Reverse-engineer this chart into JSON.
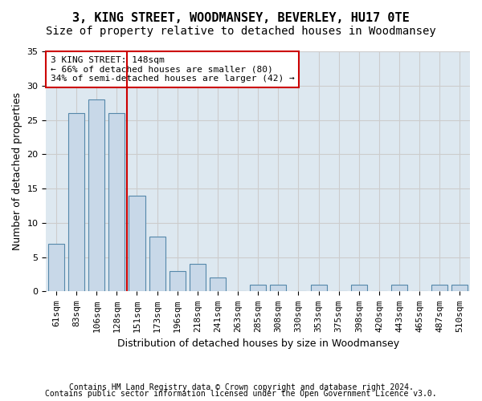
{
  "title": "3, KING STREET, WOODMANSEY, BEVERLEY, HU17 0TE",
  "subtitle": "Size of property relative to detached houses in Woodmansey",
  "xlabel": "Distribution of detached houses by size in Woodmansey",
  "ylabel": "Number of detached properties",
  "categories": [
    "61sqm",
    "83sqm",
    "106sqm",
    "128sqm",
    "151sqm",
    "173sqm",
    "196sqm",
    "218sqm",
    "241sqm",
    "263sqm",
    "285sqm",
    "308sqm",
    "330sqm",
    "353sqm",
    "375sqm",
    "398sqm",
    "420sqm",
    "443sqm",
    "465sqm",
    "487sqm",
    "510sqm"
  ],
  "values": [
    7,
    26,
    28,
    26,
    14,
    8,
    3,
    4,
    2,
    0,
    1,
    1,
    0,
    1,
    0,
    1,
    0,
    1,
    0,
    1,
    1
  ],
  "bar_color": "#c8d8e8",
  "bar_edge_color": "#5588aa",
  "vline_color": "#cc0000",
  "annotation_text": "3 KING STREET: 148sqm\n← 66% of detached houses are smaller (80)\n34% of semi-detached houses are larger (42) →",
  "annotation_box_color": "#ffffff",
  "annotation_box_edge_color": "#cc0000",
  "ylim": [
    0,
    35
  ],
  "yticks": [
    0,
    5,
    10,
    15,
    20,
    25,
    30,
    35
  ],
  "grid_color": "#cccccc",
  "bg_color": "#dde8f0",
  "footer1": "Contains HM Land Registry data © Crown copyright and database right 2024.",
  "footer2": "Contains public sector information licensed under the Open Government Licence v3.0.",
  "title_fontsize": 11,
  "subtitle_fontsize": 10,
  "xlabel_fontsize": 9,
  "ylabel_fontsize": 9,
  "tick_fontsize": 8
}
